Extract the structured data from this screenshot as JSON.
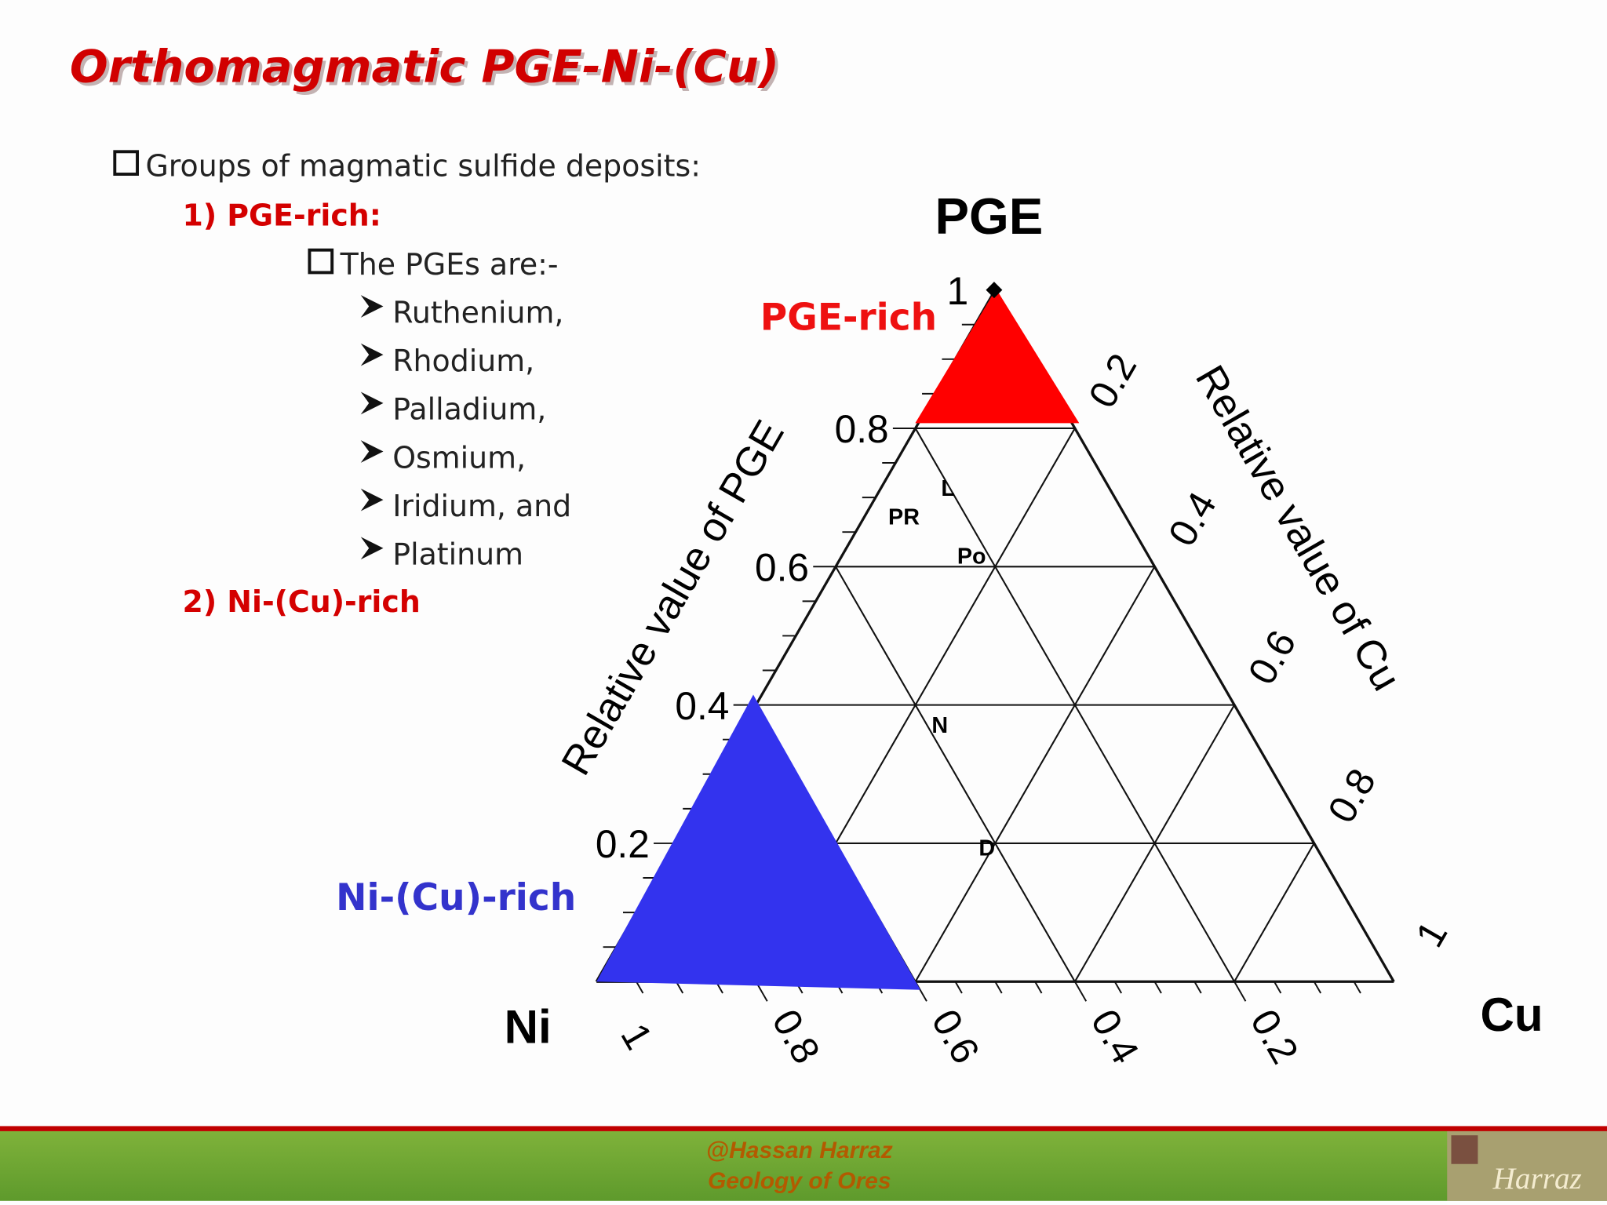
{
  "header": {
    "title": "Orthomagmatic PGE-Ni-(Cu)"
  },
  "bullets": {
    "heading": "Groups of magmatic sulfide deposits:",
    "group1": "1) PGE-rich:",
    "sub_heading": "The PGEs are:-",
    "items": [
      "Ruthenium,",
      "Rhodium,",
      "Palladium,",
      "Osmium,",
      "Iridium, and",
      "Platinum"
    ],
    "group2": "2) Ni-(Cu)-rich"
  },
  "diagram": {
    "apex_labels": {
      "top": "PGE",
      "left": "Ni",
      "right": "Cu"
    },
    "axis_titles": {
      "left": "Relative value of PGE",
      "right": "Relative value of Cu"
    },
    "left_ticks": [
      "0.2",
      "0.4",
      "0.6",
      "0.8",
      "1"
    ],
    "right_ticks": [
      "0.2",
      "0.4",
      "0.6",
      "0.8",
      "1"
    ],
    "bottom_ticks": [
      "1",
      "0.8",
      "0.6",
      "0.4",
      "0.2"
    ],
    "regions": {
      "pge_rich": "PGE-rich",
      "ni_cu_rich": "Ni-(Cu)-rich"
    },
    "points": [
      "PR",
      "L",
      "Po",
      "N",
      "D"
    ]
  },
  "footer": {
    "author": "@Hassan Harraz",
    "course": "Geology of Ores",
    "logo": "Harraz"
  }
}
